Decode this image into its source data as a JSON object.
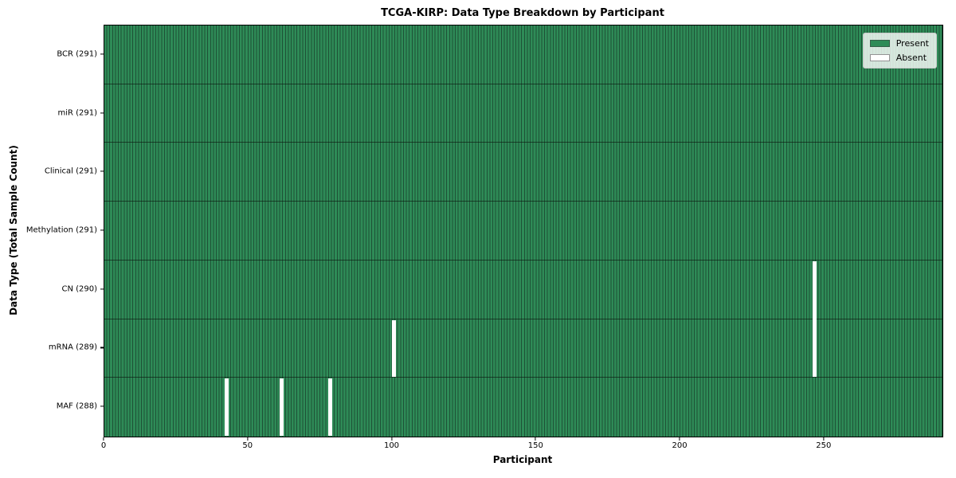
{
  "figure": {
    "title": "TCGA-KIRP: Data Type Breakdown by Participant",
    "xlabel": "Participant",
    "ylabel": "Data Type (Total Sample Count)"
  },
  "legend": {
    "items": [
      {
        "label": "Present",
        "color": "#2e8b57"
      },
      {
        "label": "Absent",
        "color": "#ffffff"
      }
    ]
  },
  "chart_data": {
    "type": "heatmap",
    "title": "TCGA-KIRP: Data Type Breakdown by Participant",
    "xlabel": "Participant",
    "ylabel": "Data Type (Total Sample Count)",
    "x_ticks": [
      0,
      50,
      100,
      150,
      200,
      250
    ],
    "x_range": [
      0,
      291
    ],
    "n_participants": 291,
    "grid": false,
    "legend": {
      "position": "upper right",
      "entries": [
        "Present",
        "Absent"
      ]
    },
    "colors": {
      "present": "#2e8b57",
      "absent": "#ffffff",
      "cell_edge": "#1e5136",
      "row_divider": "#1a1a1a",
      "axis": "#000000"
    },
    "rows": [
      {
        "name": "BCR",
        "label": "BCR (291)",
        "present_count": 291,
        "absent_participants": []
      },
      {
        "name": "miR",
        "label": "miR (291)",
        "present_count": 291,
        "absent_participants": []
      },
      {
        "name": "Clinical",
        "label": "Clinical (291)",
        "present_count": 291,
        "absent_participants": []
      },
      {
        "name": "Methylation",
        "label": "Methylation (291)",
        "present_count": 291,
        "absent_participants": []
      },
      {
        "name": "CN",
        "label": "CN (290)",
        "present_count": 290,
        "absent_participants": [
          246
        ]
      },
      {
        "name": "mRNA",
        "label": "mRNA (289)",
        "present_count": 289,
        "absent_participants": [
          100,
          246
        ]
      },
      {
        "name": "MAF",
        "label": "MAF (288)",
        "present_count": 288,
        "absent_participants": [
          42,
          61,
          78
        ]
      }
    ]
  }
}
